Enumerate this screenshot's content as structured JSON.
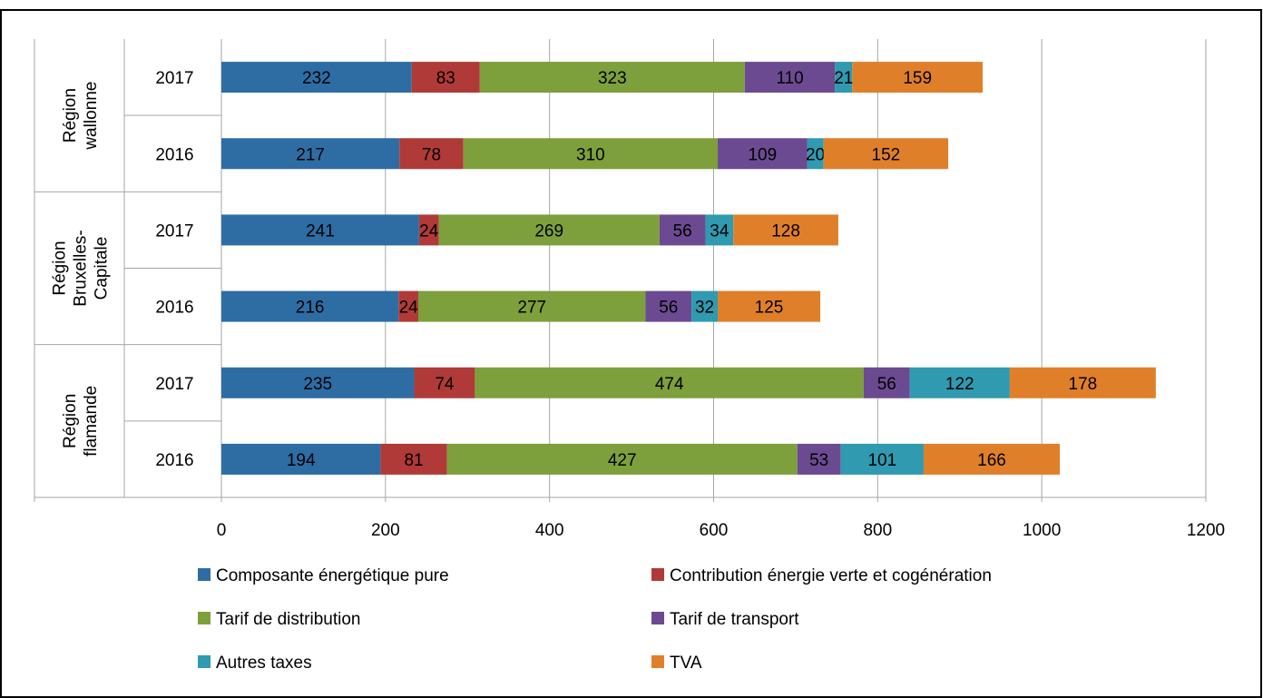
{
  "chart_data": {
    "type": "bar",
    "orientation": "horizontal",
    "stacked": true,
    "title": "",
    "xlabel": "",
    "ylabel": "",
    "xlim": [
      0,
      1200
    ],
    "x_ticks": [
      0,
      200,
      400,
      600,
      800,
      1000,
      1200
    ],
    "grid": true,
    "legend_position": "bottom",
    "groups": [
      {
        "label_lines": [
          "Région",
          "wallonne"
        ],
        "categories": [
          "2017",
          "2016"
        ]
      },
      {
        "label_lines": [
          "Région",
          "Bruxelles-",
          "Capitale"
        ],
        "categories": [
          "2017",
          "2016"
        ]
      },
      {
        "label_lines": [
          "Région",
          "flamande"
        ],
        "categories": [
          "2017",
          "2016"
        ]
      }
    ],
    "series": [
      {
        "name": "Composante énergétique pure",
        "color": "#2E6DA4",
        "values": [
          232,
          217,
          241,
          216,
          235,
          194
        ]
      },
      {
        "name": "Contribution énergie verte et cogénération",
        "color": "#B03A38",
        "values": [
          83,
          78,
          24,
          24,
          74,
          81
        ]
      },
      {
        "name": "Tarif de distribution",
        "color": "#7DA03C",
        "values": [
          323,
          310,
          269,
          277,
          474,
          427
        ]
      },
      {
        "name": "Tarif de transport",
        "color": "#6C4A91",
        "values": [
          110,
          109,
          56,
          56,
          56,
          53
        ]
      },
      {
        "name": "Autres taxes",
        "color": "#2F9AB0",
        "values": [
          21,
          20,
          34,
          32,
          122,
          101
        ]
      },
      {
        "name": "TVA",
        "color": "#E07F2A",
        "values": [
          159,
          152,
          128,
          125,
          178,
          166
        ]
      }
    ]
  }
}
